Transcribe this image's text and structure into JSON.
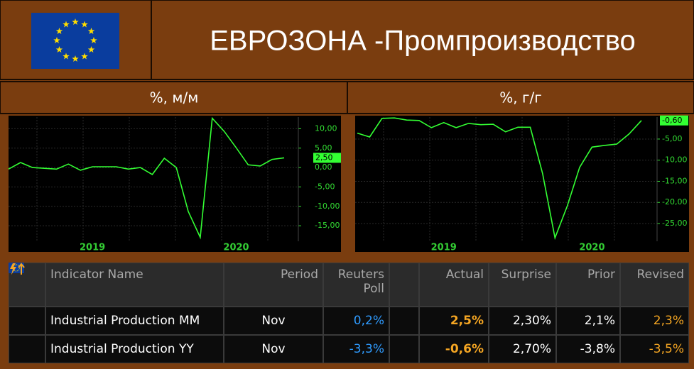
{
  "header": {
    "title": "ЕВРОЗОНА -Промпроизводство"
  },
  "chart_data": [
    {
      "type": "line",
      "title": "%, м/м",
      "categories": [
        null,
        null,
        null,
        null,
        null,
        null,
        null,
        "2019",
        null,
        null,
        null,
        null,
        null,
        null,
        null,
        null,
        null,
        null,
        null,
        "2020",
        null,
        null,
        null,
        null
      ],
      "values": [
        -0.4,
        1.3,
        0,
        -0.2,
        -0.4,
        0.9,
        -0.7,
        0.2,
        0.2,
        0.2,
        -0.4,
        0,
        -1.8,
        2.4,
        0,
        -11.3,
        -18,
        12.7,
        9.3,
        5.1,
        0.7,
        0.4,
        2.1,
        2.5
      ],
      "value_labels": [
        null,
        null,
        null,
        null,
        null,
        null,
        null,
        null,
        null,
        null,
        null,
        null,
        null,
        null,
        null,
        null,
        null,
        null,
        null,
        null,
        null,
        null,
        null,
        "2,50"
      ],
      "color": "#33ff33",
      "ylim": [
        -19,
        13
      ],
      "yticks": [
        {
          "value": 10,
          "label": "10,00"
        },
        {
          "value": 5,
          "label": "5,00"
        },
        {
          "value": 0,
          "label": "0,00"
        },
        {
          "value": -5,
          "label": "-5,00"
        },
        {
          "value": -10,
          "label": "-10,00"
        },
        {
          "value": -15,
          "label": "-15,00"
        }
      ],
      "grid": true
    },
    {
      "type": "line",
      "title": "%, г/г",
      "categories": [
        null,
        null,
        null,
        null,
        null,
        null,
        null,
        "2019",
        null,
        null,
        null,
        null,
        null,
        null,
        null,
        null,
        null,
        null,
        null,
        "2020",
        null,
        null,
        null,
        null
      ],
      "values": [
        -3.6,
        -4.5,
        -0.1,
        0,
        -0.5,
        -0.6,
        -2.3,
        -1.1,
        -2.3,
        -1.3,
        -1.6,
        -1.5,
        -3.3,
        -2.2,
        -2.2,
        -13.2,
        -28.4,
        -20.8,
        -11.7,
        -6.9,
        -6.5,
        -6.2,
        -3.8,
        -0.6
      ],
      "value_labels": [
        null,
        null,
        null,
        null,
        null,
        null,
        null,
        null,
        null,
        null,
        null,
        null,
        null,
        null,
        null,
        null,
        null,
        null,
        null,
        null,
        null,
        null,
        null,
        "-0,60"
      ],
      "color": "#33ff33",
      "ylim": [
        -29.2,
        0.2
      ],
      "yticks": [
        {
          "value": -5,
          "label": "-5,00"
        },
        {
          "value": -10,
          "label": "-10,00"
        },
        {
          "value": -15,
          "label": "-15,00"
        },
        {
          "value": -20,
          "label": "-20,00"
        },
        {
          "value": -25,
          "label": "-25,00"
        }
      ],
      "grid": true
    }
  ],
  "table": {
    "columns": [
      "Indicator Name",
      "Period",
      "Reuters Poll",
      "Actual",
      "Surprise",
      "Prior",
      "Revised"
    ],
    "rows": [
      [
        "Industrial Production MM",
        "Nov",
        "0,2%",
        "2,5%",
        "2,30%",
        "2,1%",
        "2,3%"
      ],
      [
        "Industrial Production YY",
        "Nov",
        "-3,3%",
        "-0,6%",
        "2,70%",
        "-3,8%",
        "-3,5%"
      ]
    ]
  }
}
